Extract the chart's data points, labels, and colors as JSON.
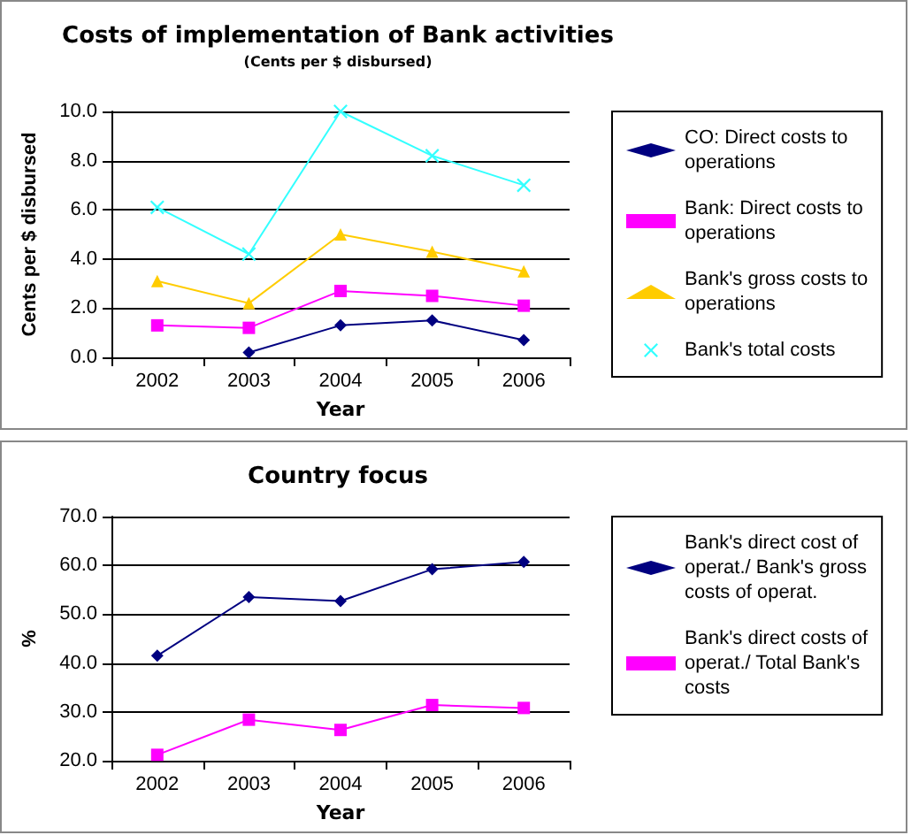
{
  "chart_data": [
    {
      "type": "line",
      "title": "Costs of implementation of Bank activities",
      "subtitle": "(Cents per $ disbursed)",
      "xlabel": "Year",
      "ylabel": "Cents per $ disbursed",
      "categories": [
        "2002",
        "2003",
        "2004",
        "2005",
        "2006"
      ],
      "series": [
        {
          "name": "CO: Direct costs to operations",
          "color": "#000080",
          "marker": "diamond",
          "values": [
            null,
            0.2,
            1.3,
            1.5,
            0.7
          ]
        },
        {
          "name": "Bank: Direct costs to operations",
          "color": "#ff00ff",
          "marker": "square",
          "values": [
            1.3,
            1.2,
            2.7,
            2.5,
            2.1
          ]
        },
        {
          "name": "Bank's gross costs to operations",
          "color": "#ffcc00",
          "marker": "triangle",
          "values": [
            3.1,
            2.2,
            5.0,
            4.3,
            3.5
          ]
        },
        {
          "name": "Bank's total costs",
          "color": "#33ffff",
          "marker": "cross",
          "values": [
            6.1,
            4.2,
            10.0,
            8.2,
            7.0
          ]
        }
      ],
      "ylim": [
        0,
        10
      ],
      "yticks": [
        {
          "value": 0,
          "label": "0.0"
        },
        {
          "value": 2,
          "label": "2.0"
        },
        {
          "value": 4,
          "label": "4.0"
        },
        {
          "value": 6,
          "label": "6.0"
        },
        {
          "value": 8,
          "label": "8.0"
        },
        {
          "value": 10,
          "label": "10.0"
        }
      ],
      "grid": "y",
      "legend": "right"
    },
    {
      "type": "line",
      "title": "Country focus",
      "xlabel": "Year",
      "ylabel": "%",
      "categories": [
        "2002",
        "2003",
        "2004",
        "2005",
        "2006"
      ],
      "series": [
        {
          "name": "Bank's direct cost of operat./ Bank's gross costs of operat.",
          "color": "#000080",
          "marker": "diamond",
          "values": [
            41.5,
            53.5,
            52.7,
            59.2,
            60.7
          ]
        },
        {
          "name": "Bank's direct costs of operat./ Total Bank's costs",
          "color": "#ff00ff",
          "marker": "square",
          "values": [
            21.2,
            28.4,
            26.3,
            31.4,
            30.8
          ]
        }
      ],
      "ylim": [
        20,
        70
      ],
      "yticks": [
        {
          "value": 20,
          "label": "20.0"
        },
        {
          "value": 30,
          "label": "30.0"
        },
        {
          "value": 40,
          "label": "40.0"
        },
        {
          "value": 50,
          "label": "50.0"
        },
        {
          "value": 60,
          "label": "60.0"
        },
        {
          "value": 70,
          "label": "70.0"
        }
      ],
      "grid": "y",
      "legend": "right"
    }
  ]
}
